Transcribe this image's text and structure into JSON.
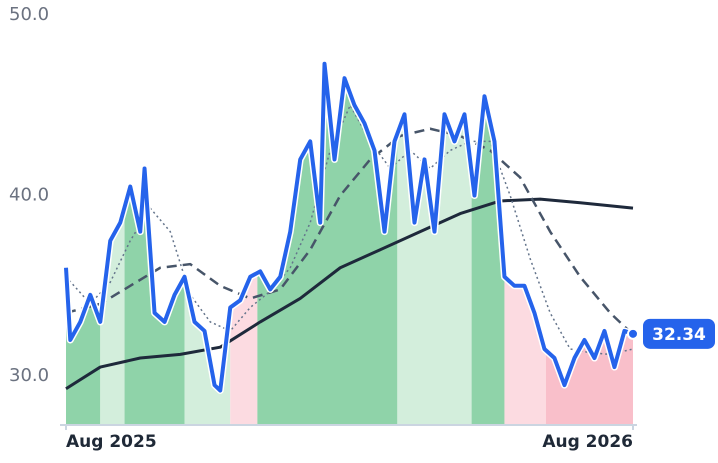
{
  "chart_data": {
    "type": "line",
    "xlim": [
      0,
      397
    ],
    "xticks": [
      {
        "value": 0,
        "label": "Aug 2025"
      },
      {
        "value": 397,
        "label": "Aug 2026"
      }
    ],
    "ylim": [
      27.29,
      50
    ],
    "yticks": [
      {
        "value": 30,
        "label": "30.0"
      },
      {
        "value": 40,
        "label": "40.0"
      },
      {
        "value": 50,
        "label": "50.0"
      }
    ],
    "bands": [
      {
        "start": 0,
        "end": 24,
        "color": "#8fd3a9"
      },
      {
        "start": 24,
        "end": 41,
        "color": "#d3eedc"
      },
      {
        "start": 41,
        "end": 83,
        "color": "#8fd3a9"
      },
      {
        "start": 83,
        "end": 115,
        "color": "#d3eedc"
      },
      {
        "start": 115,
        "end": 134,
        "color": "#fcdbe1"
      },
      {
        "start": 134,
        "end": 232,
        "color": "#8fd3a9"
      },
      {
        "start": 232,
        "end": 284,
        "color": "#d3eedc"
      },
      {
        "start": 284,
        "end": 307,
        "color": "#8fd3a9"
      },
      {
        "start": 307,
        "end": 336,
        "color": "#fcdbe1"
      },
      {
        "start": 336,
        "end": 397,
        "color": "#f9bfca"
      }
    ],
    "series": [
      {
        "color": "#2563eb",
        "dash": "solid",
        "width": 4,
        "x": [
          0,
          3,
          10,
          17,
          24,
          31,
          38,
          45,
          52,
          55,
          62,
          69,
          76,
          83,
          90,
          97,
          104,
          108,
          115,
          122,
          129,
          136,
          143,
          150,
          157,
          164,
          171,
          178,
          181,
          188,
          195,
          202,
          209,
          216,
          223,
          230,
          237,
          244,
          251,
          258,
          265,
          272,
          279,
          286,
          293,
          300,
          307,
          314,
          321,
          328,
          335,
          342,
          349,
          356,
          363,
          370,
          377,
          384,
          391,
          397
        ],
        "values": [
          36,
          32,
          33,
          34.5,
          33,
          37.5,
          38.5,
          40.5,
          38,
          41.5,
          33.5,
          33,
          34.5,
          35.5,
          33,
          32.5,
          29.5,
          29.2,
          33.8,
          34.2,
          35.5,
          35.8,
          34.8,
          35.5,
          38,
          42,
          43,
          38.5,
          47.3,
          42,
          46.5,
          45,
          44,
          42.5,
          38,
          43,
          44.5,
          38.5,
          42,
          38,
          44.5,
          43,
          44.5,
          40,
          45.5,
          43,
          35.5,
          35,
          35,
          33.5,
          31.5,
          31,
          29.5,
          31,
          32,
          31,
          32.5,
          30.5,
          32.5,
          32.34
        ]
      },
      {
        "color": "#1e293b",
        "dash": "solid",
        "width": 3,
        "x": [
          0,
          24,
          52,
          80,
          108,
          136,
          164,
          192,
          220,
          248,
          276,
          304,
          332,
          360,
          397
        ],
        "values": [
          29.3,
          30.5,
          31,
          31.2,
          31.6,
          33,
          34.3,
          36,
          37,
          38,
          39,
          39.7,
          39.8,
          39.6,
          39.3
        ]
      },
      {
        "color": "#475569",
        "dash": "dashed",
        "width": 2.5,
        "x": [
          0,
          24,
          45,
          66,
          87,
          108,
          129,
          150,
          171,
          192,
          213,
          234,
          255,
          276,
          297,
          318,
          339,
          360,
          381,
          397
        ],
        "values": [
          33.5,
          34,
          35,
          36,
          36.2,
          35,
          34.3,
          34.8,
          37,
          40,
          42,
          43.3,
          43.7,
          43.3,
          42.5,
          41,
          38,
          35.5,
          33.5,
          32.3
        ]
      },
      {
        "color": "#64748b",
        "dash": "dotted",
        "width": 1.5,
        "x": [
          0,
          17,
          31,
          45,
          59,
          73,
          87,
          101,
          115,
          129,
          143,
          157,
          171,
          185,
          199,
          213,
          227,
          241,
          255,
          269,
          283,
          297,
          311,
          325,
          339,
          353,
          367,
          381,
          397
        ],
        "values": [
          35.5,
          34,
          35.2,
          37.5,
          39.3,
          38,
          34.5,
          33,
          32.5,
          33.8,
          34.7,
          36,
          38.5,
          42.5,
          45,
          43,
          41.5,
          42.5,
          41.5,
          42.5,
          43,
          43,
          40,
          36.5,
          33.5,
          31.5,
          31.3,
          31.2,
          31.5
        ]
      }
    ]
  }
}
